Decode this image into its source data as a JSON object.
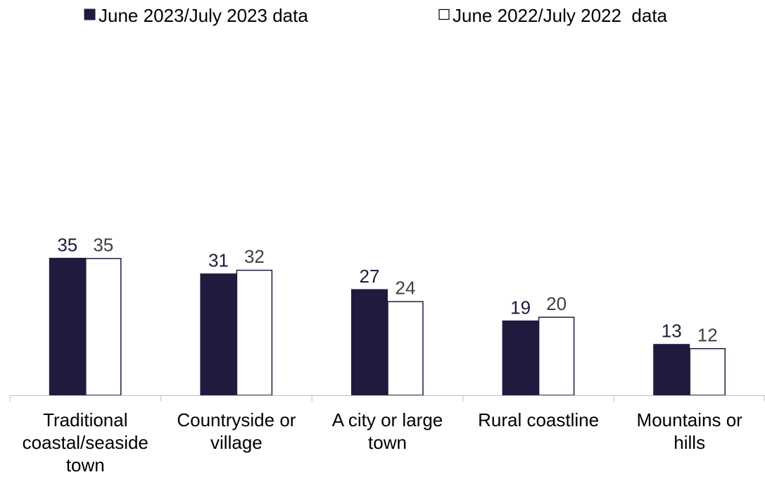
{
  "chart_data": {
    "type": "bar",
    "categories": [
      [
        "Traditional",
        "coastal/seaside",
        "town"
      ],
      [
        "Countryside or",
        "village"
      ],
      [
        "A city or large",
        "town"
      ],
      [
        "Rural coastline"
      ],
      [
        "Mountains or",
        "hills"
      ]
    ],
    "series": [
      {
        "name": "June 2023/July 2023 data",
        "values": [
          35,
          31,
          27,
          19,
          13
        ],
        "color": "#201a3f"
      },
      {
        "name": "June 2022/July 2022  data",
        "values": [
          35,
          32,
          24,
          20,
          12
        ],
        "color": "#ffffff"
      }
    ],
    "colors": {
      "outline": "#201a3f",
      "label_series_1": "#201a3f",
      "label_series_2": "#404040",
      "axis": "#bfbfbf",
      "text": "#000000"
    },
    "ylim": [
      0,
      100
    ],
    "grid": false,
    "legend_position": "top"
  }
}
